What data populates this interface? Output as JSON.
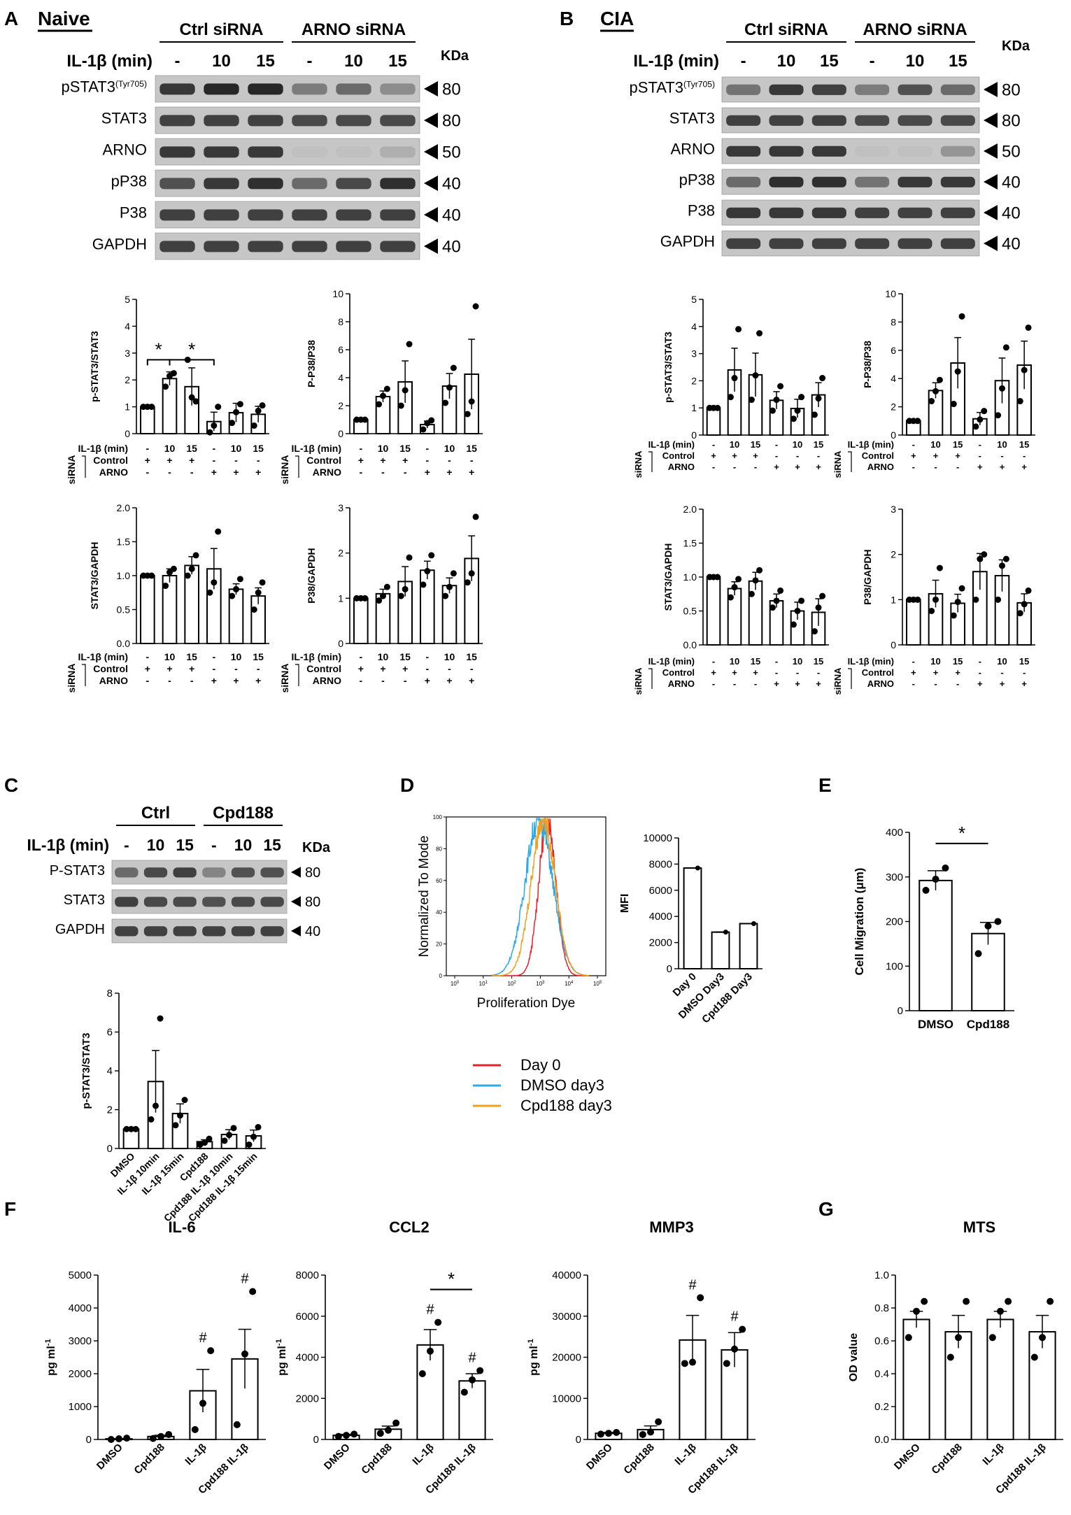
{
  "panels": {
    "A": {
      "letter": "A",
      "title": "Naive"
    },
    "B": {
      "letter": "B",
      "title": "CIA"
    },
    "C": {
      "letter": "C"
    },
    "D": {
      "letter": "D"
    },
    "E": {
      "letter": "E"
    },
    "F": {
      "letter": "F"
    },
    "G": {
      "letter": "G"
    }
  },
  "blots": {
    "A": {
      "groups": [
        "Ctrl siRNA",
        "ARNO siRNA"
      ],
      "il_label": "IL-1β (min)",
      "lanes": [
        "-",
        "10",
        "15",
        "-",
        "10",
        "15"
      ],
      "kda_label": "KDa",
      "rows": [
        {
          "label": "pSTAT3",
          "sup": "(Tyr705)",
          "kda": "80",
          "lane_intensity": [
            0.85,
            0.95,
            0.95,
            0.45,
            0.55,
            0.35
          ]
        },
        {
          "label": "STAT3",
          "sup": "",
          "kda": "80",
          "lane_intensity": [
            0.8,
            0.8,
            0.8,
            0.75,
            0.75,
            0.75
          ]
        },
        {
          "label": "ARNO",
          "sup": "",
          "kda": "50",
          "lane_intensity": [
            0.85,
            0.85,
            0.85,
            0.05,
            0.05,
            0.15
          ]
        },
        {
          "label": "pP38",
          "sup": "",
          "kda": "40",
          "lane_intensity": [
            0.7,
            0.85,
            0.9,
            0.55,
            0.75,
            0.9
          ]
        },
        {
          "label": "P38",
          "sup": "",
          "kda": "40",
          "lane_intensity": [
            0.8,
            0.8,
            0.8,
            0.8,
            0.8,
            0.8
          ]
        },
        {
          "label": "GAPDH",
          "sup": "",
          "kda": "40",
          "lane_intensity": [
            0.8,
            0.8,
            0.8,
            0.8,
            0.8,
            0.8
          ]
        }
      ]
    },
    "B": {
      "groups": [
        "Ctrl siRNA",
        "ARNO siRNA"
      ],
      "il_label": "IL-1β (min)",
      "lanes": [
        "-",
        "10",
        "15",
        "-",
        "10",
        "15"
      ],
      "kda_label": "KDa",
      "rows": [
        {
          "label": "pSTAT3",
          "sup": "(Tyr705)",
          "kda": "80",
          "lane_intensity": [
            0.5,
            0.85,
            0.8,
            0.45,
            0.7,
            0.55
          ]
        },
        {
          "label": "STAT3",
          "sup": "",
          "kda": "80",
          "lane_intensity": [
            0.8,
            0.8,
            0.8,
            0.75,
            0.75,
            0.75
          ]
        },
        {
          "label": "ARNO",
          "sup": "",
          "kda": "50",
          "lane_intensity": [
            0.85,
            0.85,
            0.85,
            0.05,
            0.05,
            0.3
          ]
        },
        {
          "label": "pP38",
          "sup": "",
          "kda": "40",
          "lane_intensity": [
            0.55,
            0.9,
            0.9,
            0.5,
            0.85,
            0.85
          ]
        },
        {
          "label": "P38",
          "sup": "",
          "kda": "40",
          "lane_intensity": [
            0.85,
            0.85,
            0.85,
            0.8,
            0.8,
            0.8
          ]
        },
        {
          "label": "GAPDH",
          "sup": "",
          "kda": "40",
          "lane_intensity": [
            0.8,
            0.8,
            0.8,
            0.8,
            0.8,
            0.8
          ]
        }
      ]
    },
    "C": {
      "groups": [
        "Ctrl",
        "Cpd188"
      ],
      "il_label": "IL-1β (min)",
      "lanes": [
        "-",
        "10",
        "15",
        "-",
        "10",
        "15"
      ],
      "kda_label": "KDa",
      "rows": [
        {
          "label": "P-STAT3",
          "sup": "",
          "kda": "80",
          "lane_intensity": [
            0.55,
            0.75,
            0.8,
            0.4,
            0.7,
            0.7
          ]
        },
        {
          "label": "STAT3",
          "sup": "",
          "kda": "80",
          "lane_intensity": [
            0.8,
            0.75,
            0.75,
            0.7,
            0.75,
            0.75
          ]
        },
        {
          "label": "GAPDH",
          "sup": "",
          "kda": "40",
          "lane_intensity": [
            0.8,
            0.8,
            0.8,
            0.8,
            0.8,
            0.8
          ]
        }
      ]
    }
  },
  "condition_table": {
    "il_label": "IL-1β (min)",
    "il_values": [
      "-",
      "10",
      "15",
      "-",
      "10",
      "15"
    ],
    "sirna_label": "siRNA",
    "rows": [
      {
        "label": "Control",
        "signs": [
          "+",
          "+",
          "+",
          "-",
          "-",
          "-"
        ]
      },
      {
        "label": "ARNO",
        "signs": [
          "-",
          "-",
          "-",
          "+",
          "+",
          "+"
        ]
      }
    ]
  },
  "chart_data": [
    {
      "id": "A1",
      "type": "bar",
      "ylabel": "p-STAT3/STAT3",
      "ylim": [
        0,
        5
      ],
      "yticks": [
        "0",
        "1",
        "2",
        "3",
        "4",
        "5"
      ],
      "values": [
        1.0,
        2.05,
        1.75,
        0.45,
        0.78,
        0.72
      ],
      "errors": [
        0.02,
        0.25,
        0.7,
        0.35,
        0.35,
        0.3
      ],
      "points": [
        [
          1,
          1,
          1
        ],
        [
          1.75,
          2.15,
          2.25
        ],
        [
          2.75,
          1.35,
          1.2
        ],
        [
          0.05,
          0.3,
          1.0
        ],
        [
          0.4,
          0.8,
          1.1
        ],
        [
          0.3,
          0.85,
          1.05
        ]
      ],
      "annotations": [
        {
          "text": "*",
          "from": 0,
          "to": 1,
          "y": 2.75
        },
        {
          "text": "*",
          "from": 1,
          "to": 3,
          "y": 2.75
        }
      ]
    },
    {
      "id": "A2",
      "type": "bar",
      "ylabel": "P-P38/P38",
      "ylim": [
        0,
        10
      ],
      "yticks": [
        "0",
        "2",
        "4",
        "6",
        "8",
        "10"
      ],
      "values": [
        1.0,
        2.65,
        3.7,
        0.65,
        3.4,
        4.25
      ],
      "errors": [
        0.02,
        0.4,
        1.5,
        0.25,
        0.9,
        2.5
      ],
      "points": [
        [
          1,
          1,
          1
        ],
        [
          2.1,
          2.7,
          3.2
        ],
        [
          2.0,
          3.1,
          6.4
        ],
        [
          0.3,
          0.75,
          0.95
        ],
        [
          2.2,
          3.3,
          4.7
        ],
        [
          1.4,
          2.3,
          9.1
        ]
      ],
      "annotations": []
    },
    {
      "id": "A3",
      "type": "bar",
      "ylabel": "STAT3/GAPDH",
      "ylim": [
        0,
        2
      ],
      "yticks": [
        "0.0",
        "0.5",
        "1.0",
        "1.5",
        "2.0"
      ],
      "values": [
        1.0,
        1.0,
        1.15,
        1.1,
        0.8,
        0.7
      ],
      "errors": [
        0.01,
        0.1,
        0.13,
        0.3,
        0.08,
        0.12
      ],
      "points": [
        [
          1,
          1,
          1
        ],
        [
          0.85,
          1.05,
          1.1
        ],
        [
          1.0,
          1.1,
          1.3
        ],
        [
          0.75,
          0.9,
          1.65
        ],
        [
          0.7,
          0.8,
          0.95
        ],
        [
          0.5,
          0.75,
          0.9
        ]
      ],
      "annotations": []
    },
    {
      "id": "A4",
      "type": "bar",
      "ylabel": "P38/GAPDH",
      "ylim": [
        0,
        3
      ],
      "yticks": [
        "0",
        "1",
        "2",
        "3"
      ],
      "values": [
        1.0,
        1.1,
        1.37,
        1.62,
        1.28,
        1.88
      ],
      "errors": [
        0.01,
        0.1,
        0.33,
        0.2,
        0.17,
        0.5
      ],
      "points": [
        [
          1,
          1,
          1
        ],
        [
          0.95,
          1.05,
          1.25
        ],
        [
          1.05,
          1.2,
          1.9
        ],
        [
          1.3,
          1.6,
          1.95
        ],
        [
          1.05,
          1.25,
          1.55
        ],
        [
          1.35,
          1.55,
          2.8
        ]
      ],
      "annotations": []
    },
    {
      "id": "B1",
      "type": "bar",
      "ylabel": "p-STAT3/STAT3",
      "ylim": [
        0,
        5
      ],
      "yticks": [
        "0",
        "1",
        "2",
        "3",
        "4",
        "5"
      ],
      "values": [
        1.0,
        2.4,
        2.22,
        1.28,
        0.98,
        1.48
      ],
      "errors": [
        0.01,
        0.8,
        0.8,
        0.32,
        0.34,
        0.45
      ],
      "points": [
        [
          1,
          1,
          1
        ],
        [
          1.4,
          2.1,
          3.9
        ],
        [
          1.3,
          2.2,
          3.75
        ],
        [
          0.9,
          1.3,
          1.8
        ],
        [
          0.6,
          0.9,
          1.4
        ],
        [
          0.75,
          1.35,
          2.1
        ]
      ],
      "annotations": []
    },
    {
      "id": "B2",
      "type": "bar",
      "ylabel": "P-P38/P38",
      "ylim": [
        0,
        10
      ],
      "yticks": [
        "0",
        "2",
        "4",
        "6",
        "8",
        "10"
      ],
      "values": [
        1.0,
        3.15,
        5.1,
        1.15,
        3.85,
        4.95
      ],
      "errors": [
        0.01,
        0.55,
        1.8,
        0.45,
        1.6,
        1.7
      ],
      "points": [
        [
          1,
          1,
          1
        ],
        [
          2.4,
          3.1,
          3.9
        ],
        [
          2.2,
          4.5,
          8.4
        ],
        [
          0.6,
          1.1,
          1.7
        ],
        [
          1.4,
          3.3,
          6.2
        ],
        [
          2.4,
          4.6,
          7.6
        ]
      ],
      "annotations": []
    },
    {
      "id": "B3",
      "type": "bar",
      "ylabel": "STAT3/GAPDH",
      "ylim": [
        0,
        2
      ],
      "yticks": [
        "0.0",
        "0.5",
        "1.0",
        "1.5",
        "2.0"
      ],
      "values": [
        1.0,
        0.83,
        0.94,
        0.65,
        0.5,
        0.48
      ],
      "errors": [
        0.01,
        0.1,
        0.13,
        0.1,
        0.13,
        0.2
      ],
      "points": [
        [
          1,
          1,
          1
        ],
        [
          0.7,
          0.85,
          0.97
        ],
        [
          0.75,
          0.95,
          1.1
        ],
        [
          0.55,
          0.65,
          0.8
        ],
        [
          0.3,
          0.5,
          0.65
        ],
        [
          0.2,
          0.55,
          0.72
        ]
      ],
      "annotations": []
    },
    {
      "id": "B4",
      "type": "bar",
      "ylabel": "P38/GAPDH",
      "ylim": [
        0,
        3
      ],
      "yticks": [
        "0",
        "1",
        "2",
        "3"
      ],
      "values": [
        1.0,
        1.13,
        0.92,
        1.62,
        1.53,
        0.93
      ],
      "errors": [
        0.01,
        0.3,
        0.2,
        0.4,
        0.35,
        0.2
      ],
      "points": [
        [
          1,
          1,
          1
        ],
        [
          0.75,
          1.0,
          1.7
        ],
        [
          0.65,
          0.95,
          1.25
        ],
        [
          1.0,
          1.9,
          2.0
        ],
        [
          1.0,
          1.75,
          1.9
        ],
        [
          0.7,
          0.9,
          1.2
        ]
      ],
      "annotations": []
    },
    {
      "id": "C1",
      "type": "bar",
      "ylabel": "p-STAT3/STAT3",
      "ylim": [
        0,
        8
      ],
      "yticks": [
        "0",
        "2",
        "4",
        "6",
        "8"
      ],
      "categories": [
        "DMSO",
        "IL-1β 10min",
        "IL-1β 15min",
        "Cpd188",
        "Cpd188 IL-1β 10min",
        "Cpd188 IL-1β 15min"
      ],
      "values": [
        1.0,
        3.45,
        1.8,
        0.35,
        0.72,
        0.65
      ],
      "errors": [
        0.01,
        1.6,
        0.5,
        0.1,
        0.25,
        0.3
      ],
      "points": [
        [
          1,
          1,
          1
        ],
        [
          1.5,
          2.2,
          6.7
        ],
        [
          1.2,
          1.7,
          2.5
        ],
        [
          0.2,
          0.3,
          0.5
        ],
        [
          0.4,
          0.7,
          1.05
        ],
        [
          0.2,
          0.6,
          1.1
        ]
      ],
      "annotations": []
    },
    {
      "id": "D",
      "type": "bar",
      "ylabel": "MFI",
      "ylim": [
        0,
        10000
      ],
      "yticks": [
        "0",
        "2000",
        "4000",
        "6000",
        "8000",
        "10000"
      ],
      "categories": [
        "Day 0",
        "DMSO Day3",
        "Cpd188 Day3"
      ],
      "values": [
        7700,
        2800,
        3450
      ],
      "errors": [
        0,
        0,
        0
      ],
      "points": [
        [
          7700
        ],
        [
          2800
        ],
        [
          3450
        ]
      ],
      "annotations": []
    },
    {
      "id": "E",
      "type": "bar",
      "ylabel": "Cell Migration (μm)",
      "ylim": [
        0,
        400
      ],
      "yticks": [
        "0",
        "100",
        "200",
        "300",
        "400"
      ],
      "categories": [
        "DMSO",
        "Cpd188"
      ],
      "values": [
        292,
        173
      ],
      "errors": [
        22,
        25
      ],
      "points": [
        [
          270,
          295,
          320
        ],
        [
          128,
          190,
          200
        ]
      ],
      "annotations": [
        {
          "text": "*",
          "from": 0,
          "to": 1,
          "y": 375
        }
      ]
    },
    {
      "id": "F1",
      "type": "bar",
      "title": "IL-6",
      "ylabel": "pg ml",
      "ylim": [
        0,
        5000
      ],
      "yticks": [
        "0",
        "1000",
        "2000",
        "3000",
        "4000",
        "5000"
      ],
      "categories": [
        "DMSO",
        "Cpd188",
        "IL-1β",
        "Cpd188 IL-1β"
      ],
      "values": [
        20,
        90,
        1480,
        2450
      ],
      "errors": [
        5,
        40,
        650,
        900
      ],
      "points": [
        [
          0,
          20,
          40
        ],
        [
          30,
          90,
          150
        ],
        [
          300,
          1100,
          2700
        ],
        [
          450,
          2600,
          4500
        ]
      ],
      "marks": [
        "",
        "",
        "#",
        "#"
      ],
      "annotations": []
    },
    {
      "id": "F2",
      "type": "bar",
      "title": "CCL2",
      "ylabel": "pg ml",
      "ylim": [
        0,
        8000
      ],
      "yticks": [
        "0",
        "2000",
        "4000",
        "6000",
        "8000"
      ],
      "categories": [
        "DMSO",
        "Cpd188",
        "IL-1β",
        "Cpd188 IL-1β"
      ],
      "values": [
        200,
        500,
        4600,
        2850
      ],
      "errors": [
        50,
        150,
        750,
        350
      ],
      "points": [
        [
          150,
          200,
          260
        ],
        [
          300,
          450,
          800
        ],
        [
          3200,
          4300,
          5700
        ],
        [
          2300,
          2900,
          3350
        ]
      ],
      "marks": [
        "",
        "",
        "#",
        "#"
      ],
      "annotations": [
        {
          "text": "*",
          "from": 2,
          "to": 3,
          "y": 7300
        }
      ]
    },
    {
      "id": "F3",
      "type": "bar",
      "title": "MMP3",
      "ylabel": "pg ml",
      "ylim": [
        0,
        40000
      ],
      "yticks": [
        "0",
        "10000",
        "20000",
        "30000",
        "40000"
      ],
      "categories": [
        "DMSO",
        "Cpd188",
        "IL-1β",
        "Cpd188 IL-1β"
      ],
      "values": [
        1500,
        2400,
        24200,
        21800
      ],
      "errors": [
        200,
        900,
        6000,
        4200
      ],
      "points": [
        [
          1300,
          1500,
          1700
        ],
        [
          1200,
          1800,
          4300
        ],
        [
          18500,
          18800,
          34500
        ],
        [
          18500,
          22000,
          26800
        ]
      ],
      "marks": [
        "",
        "",
        "#",
        "#"
      ],
      "annotations": []
    },
    {
      "id": "G",
      "type": "bar",
      "title": "MTS",
      "ylabel": "OD value",
      "ylim": [
        0,
        1
      ],
      "yticks": [
        "0.0",
        "0.2",
        "0.4",
        "0.6",
        "0.8",
        "1.0"
      ],
      "categories": [
        "DMSO",
        "Cpd188",
        "IL-1β",
        "Cpd188 IL-1β"
      ],
      "values": [
        0.73,
        0.655,
        0.73,
        0.655
      ],
      "errors": [
        0.05,
        0.1,
        0.05,
        0.1
      ],
      "points": [
        [
          0.62,
          0.78,
          0.84
        ],
        [
          0.5,
          0.62,
          0.84
        ],
        [
          0.62,
          0.78,
          0.84
        ],
        [
          0.5,
          0.62,
          0.84
        ]
      ],
      "marks": [
        "",
        "",
        "",
        ""
      ],
      "annotations": []
    }
  ],
  "histogram": {
    "ylabel": "Normalized To Mode",
    "xlabel": "Proliferation Dye",
    "yticks": [
      "0",
      "20",
      "40",
      "60",
      "80",
      "100"
    ],
    "xticks": [
      "10",
      "10",
      "10",
      "10",
      "10",
      "10"
    ],
    "xexp": [
      "0",
      "1",
      "2",
      "3",
      "4",
      "5"
    ],
    "series": [
      {
        "name": "Day 0",
        "color": "#e8202a",
        "peak_log": 3.25,
        "width_log": 0.3
      },
      {
        "name": "DMSO day3",
        "color": "#2aa8e8",
        "peak_log": 2.95,
        "width_log": 0.48
      },
      {
        "name": "Cpd188  day3",
        "color": "#f0a020",
        "peak_log": 3.1,
        "width_log": 0.42
      }
    ]
  }
}
